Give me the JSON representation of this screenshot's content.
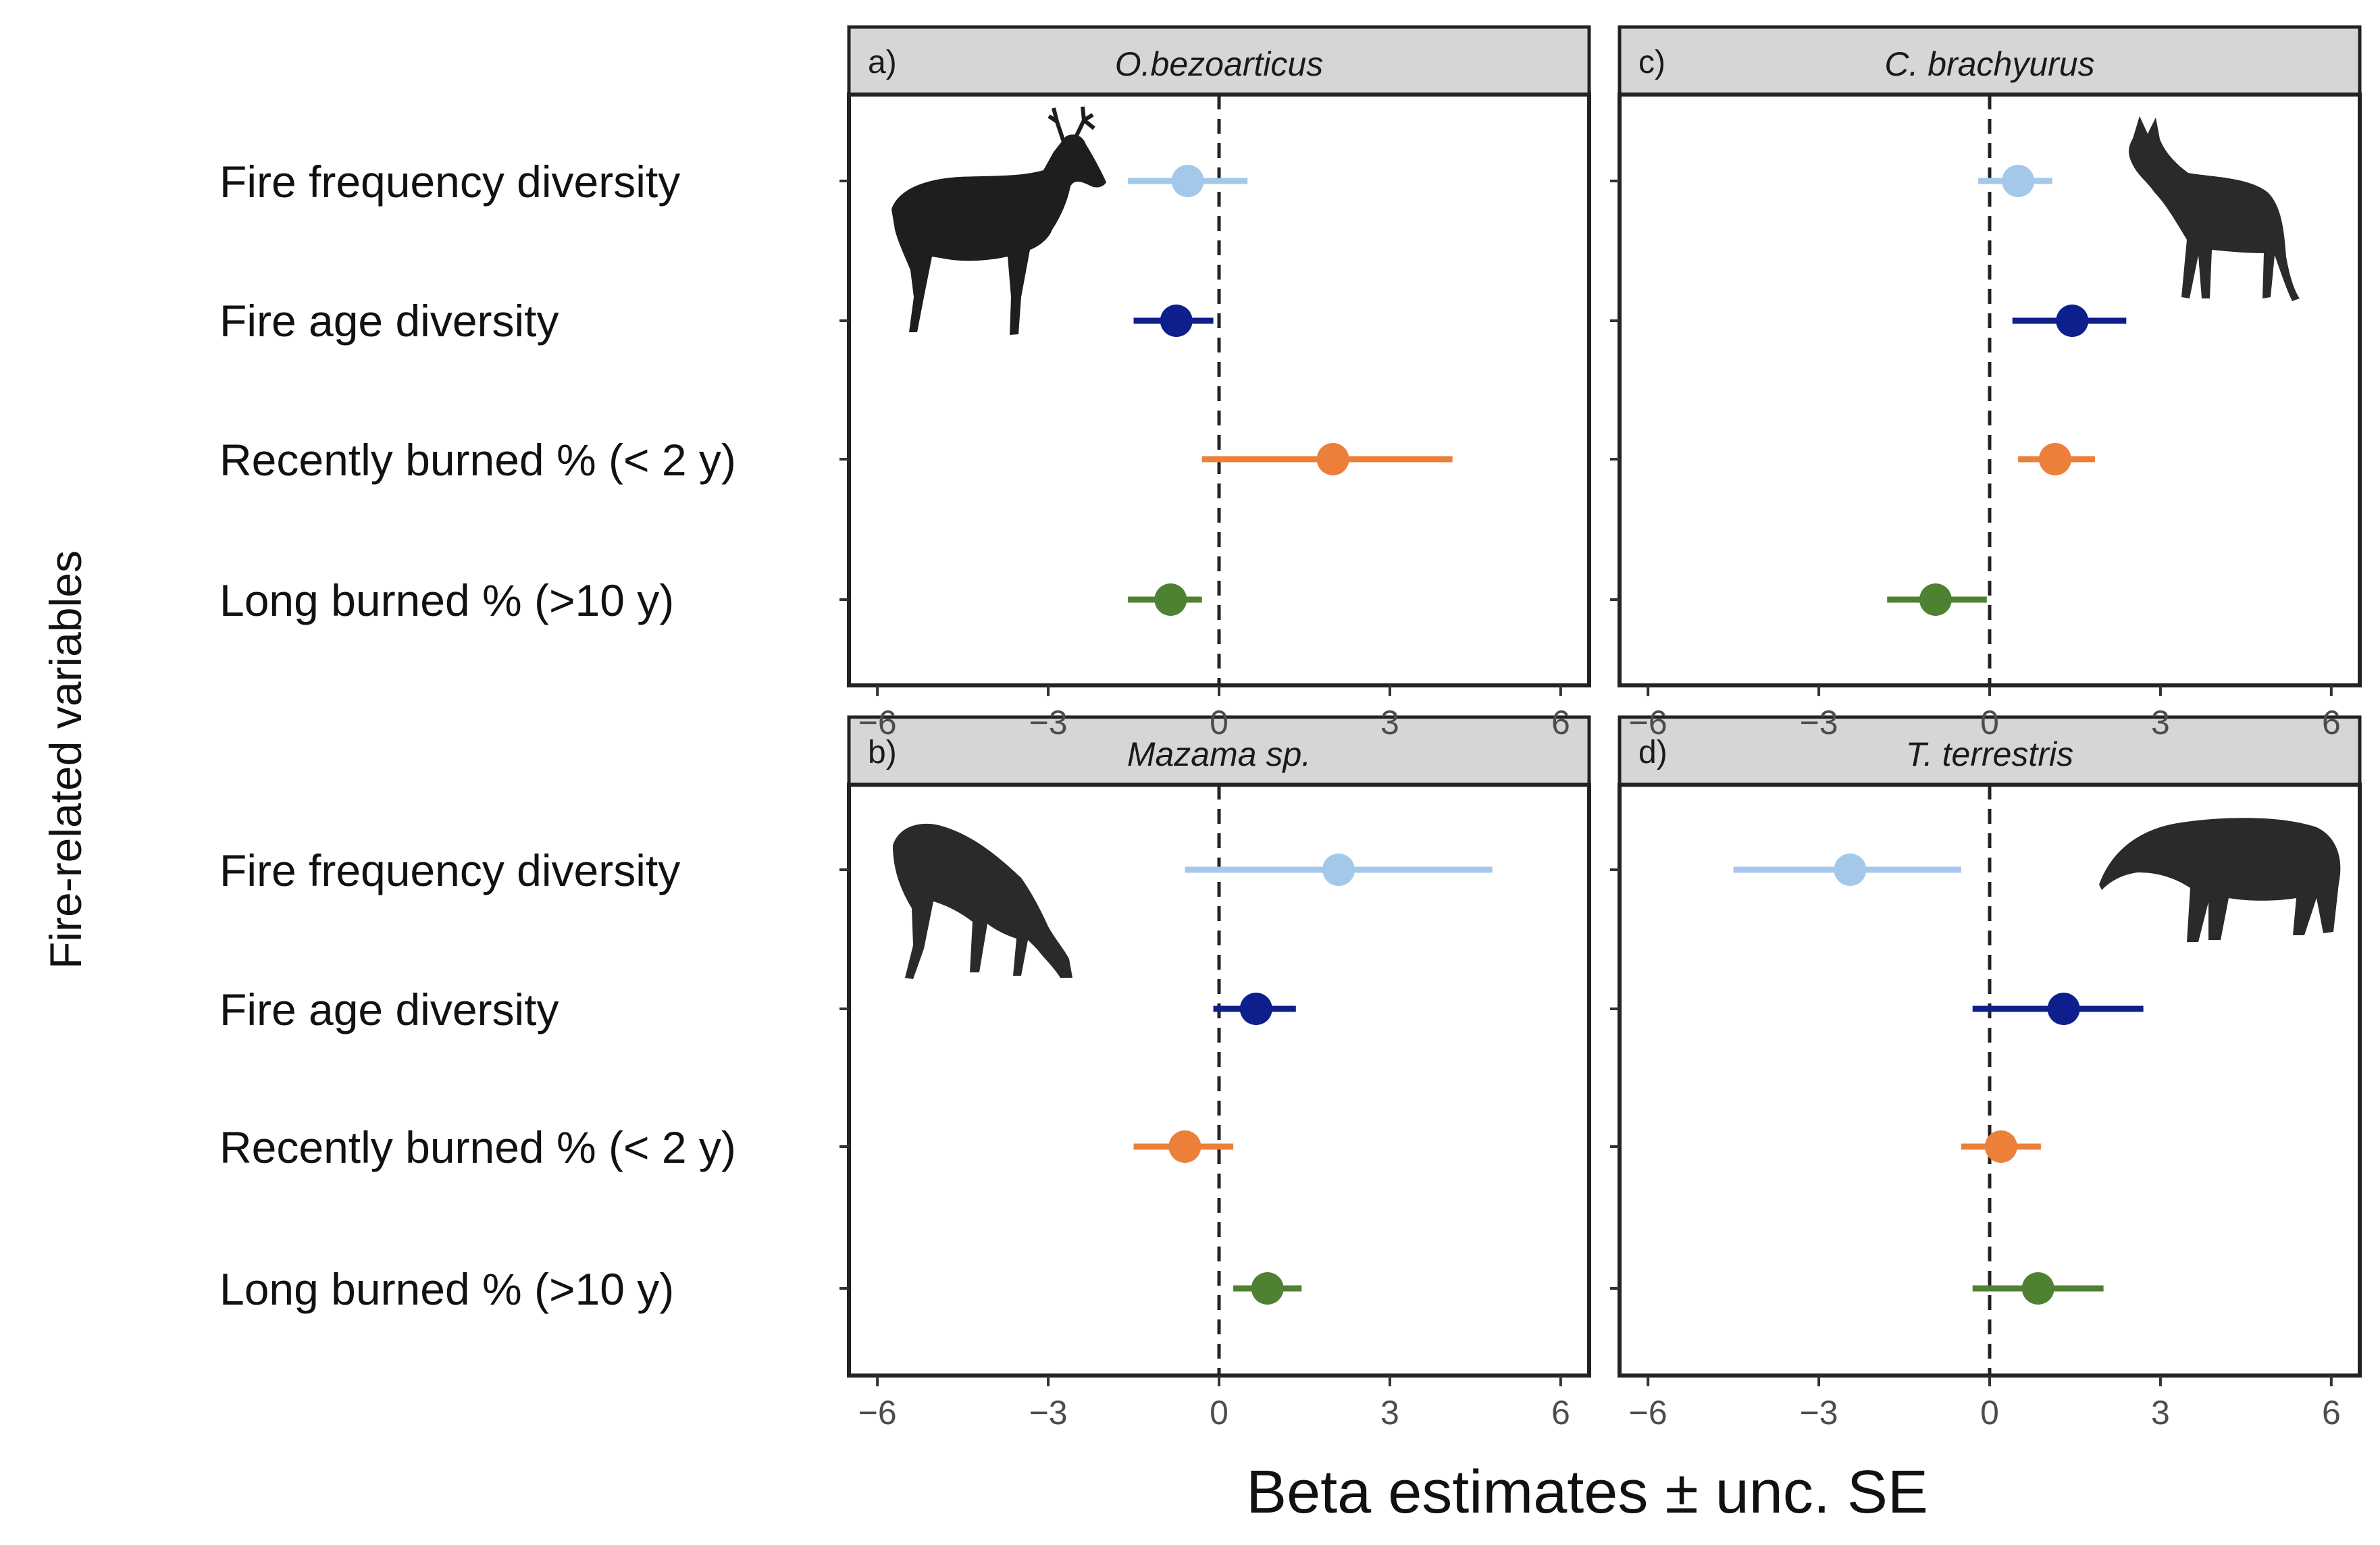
{
  "chart_data": {
    "type": "scatter",
    "subtype": "coefficient-dot-plot with error bars (facetted 2x2)",
    "y_axis_title": "Fire-related variables",
    "x_axis_title": "Beta estimates ± unc. SE",
    "variables": [
      "Fire frequency diversity",
      "Fire age diversity",
      "Recently burned % (< 2 y)",
      "Long burned % (>10 y)"
    ],
    "xlim": [
      -6.5,
      6.5
    ],
    "x_ticks": [
      -6,
      -3,
      0,
      3,
      6
    ],
    "x_tick_labels": [
      "−6",
      "−3",
      "0",
      "3",
      "6"
    ],
    "reference_line": 0,
    "colors": {
      "Fire frequency diversity": "#a3c8ea",
      "Fire age diversity": "#0d1f8c",
      "Recently burned % (< 2 y)": "#ec7f3a",
      "Long burned % (>10 y)": "#4f8133",
      "zero_line": "#222222",
      "strip_fill": "#d6d6d6",
      "tick_text": "#4d4d4d"
    },
    "panels": [
      {
        "tag": "a)",
        "species": "O.bezoarticus",
        "silhouette": "pampas-deer-icon",
        "estimates": [
          {
            "variable": "Fire frequency diversity",
            "beta": -0.55,
            "lower": -1.6,
            "upper": 0.5
          },
          {
            "variable": "Fire age diversity",
            "beta": -0.75,
            "lower": -1.5,
            "upper": -0.1
          },
          {
            "variable": "Recently burned % (< 2 y)",
            "beta": 2.0,
            "lower": -0.3,
            "upper": 4.1
          },
          {
            "variable": "Long burned % (>10 y)",
            "beta": -0.85,
            "lower": -1.6,
            "upper": -0.3
          }
        ]
      },
      {
        "tag": "c)",
        "species": "C. brachyurus",
        "silhouette": "maned-wolf-icon",
        "estimates": [
          {
            "variable": "Fire frequency diversity",
            "beta": 0.5,
            "lower": -0.2,
            "upper": 1.1
          },
          {
            "variable": "Fire age diversity",
            "beta": 1.45,
            "lower": 0.4,
            "upper": 2.4
          },
          {
            "variable": "Recently burned % (< 2 y)",
            "beta": 1.15,
            "lower": 0.5,
            "upper": 1.85
          },
          {
            "variable": "Long burned % (>10 y)",
            "beta": -0.95,
            "lower": -1.8,
            "upper": -0.05
          }
        ]
      },
      {
        "tag": "b)",
        "species": "Mazama sp.",
        "silhouette": "brocket-deer-icon",
        "estimates": [
          {
            "variable": "Fire frequency diversity",
            "beta": 2.1,
            "lower": -0.6,
            "upper": 4.8
          },
          {
            "variable": "Fire age diversity",
            "beta": 0.65,
            "lower": -0.1,
            "upper": 1.35
          },
          {
            "variable": "Recently burned % (< 2 y)",
            "beta": -0.6,
            "lower": -1.5,
            "upper": 0.25
          },
          {
            "variable": "Long burned % (>10 y)",
            "beta": 0.85,
            "lower": 0.25,
            "upper": 1.45
          }
        ]
      },
      {
        "tag": "d)",
        "species": "T. terrestris",
        "silhouette": "tapir-icon",
        "estimates": [
          {
            "variable": "Fire frequency diversity",
            "beta": -2.45,
            "lower": -4.5,
            "upper": -0.5
          },
          {
            "variable": "Fire age diversity",
            "beta": 1.3,
            "lower": -0.3,
            "upper": 2.7
          },
          {
            "variable": "Recently burned % (< 2 y)",
            "beta": 0.2,
            "lower": -0.5,
            "upper": 0.9
          },
          {
            "variable": "Long burned % (>10 y)",
            "beta": 0.85,
            "lower": -0.3,
            "upper": 2.0
          }
        ]
      }
    ]
  }
}
